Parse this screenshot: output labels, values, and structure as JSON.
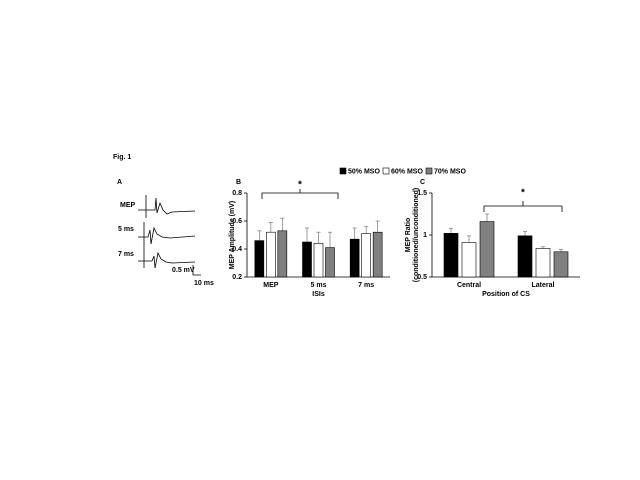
{
  "figure_label": "Fig. 1",
  "panel_a": {
    "label": "A",
    "trace_labels": [
      "MEP",
      "5 ms",
      "7 ms"
    ],
    "scale_y": "0.5 mV",
    "scale_x": "10 ms"
  },
  "chart_data": [
    {
      "type": "bar",
      "panel": "B",
      "ylabel": "MEP Amplitude (mV)",
      "xlabel": "ISIs",
      "categories": [
        "MEP",
        "5 ms",
        "7 ms"
      ],
      "ylim": [
        0.2,
        0.8
      ],
      "yticks": [
        0.2,
        0.4,
        0.6,
        0.8
      ],
      "annotation": "*",
      "series": [
        {
          "name": "50% MSO",
          "color": "#000000",
          "values": [
            0.46,
            0.45,
            0.47
          ],
          "errors": [
            0.07,
            0.1,
            0.08
          ]
        },
        {
          "name": "60% MSO",
          "color": "#ffffff",
          "values": [
            0.52,
            0.44,
            0.51
          ],
          "errors": [
            0.07,
            0.08,
            0.05
          ]
        },
        {
          "name": "70% MSO",
          "color": "#808080",
          "values": [
            0.53,
            0.41,
            0.52
          ],
          "errors": [
            0.09,
            0.11,
            0.08
          ]
        }
      ]
    },
    {
      "type": "bar",
      "panel": "C",
      "ylabel": [
        "MEP Ratio",
        "(conditioned/unconditioned)"
      ],
      "xlabel": "Position of  CS",
      "categories": [
        "Central",
        "Lateral"
      ],
      "ylim": [
        0.5,
        1.5
      ],
      "yticks": [
        0.5,
        1,
        1.5
      ],
      "annotation": "*",
      "series": [
        {
          "color": "#000000",
          "values": [
            1.02,
            0.99
          ],
          "errors": [
            0.06,
            0.05
          ]
        },
        {
          "color": "#ffffff",
          "values": [
            0.91,
            0.84
          ],
          "errors": [
            0.08,
            0.02
          ]
        },
        {
          "color": "#808080",
          "values": [
            1.16,
            0.8
          ],
          "errors": [
            0.09,
            0.03
          ]
        }
      ]
    }
  ]
}
